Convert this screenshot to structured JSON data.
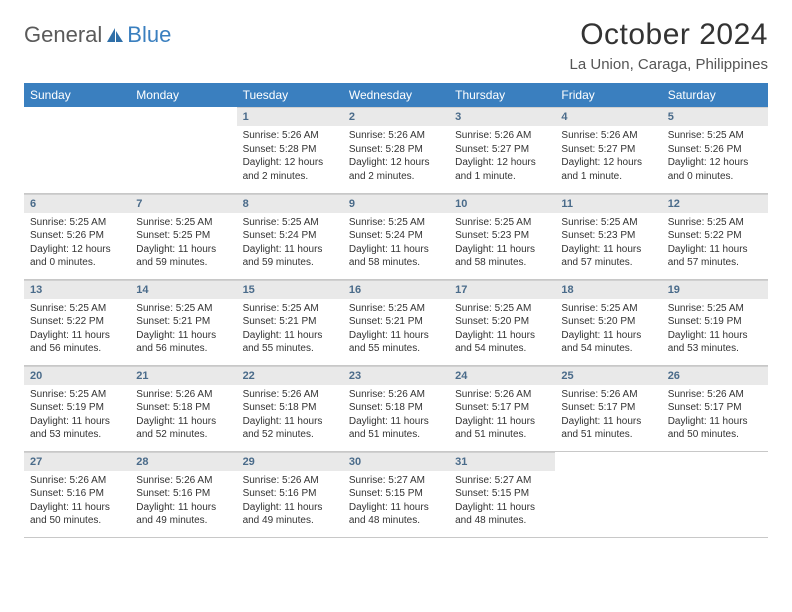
{
  "logo": {
    "text1": "General",
    "text2": "Blue"
  },
  "title": "October 2024",
  "location": "La Union, Caraga, Philippines",
  "header_bg": "#3a7fbf",
  "days_of_week": [
    "Sunday",
    "Monday",
    "Tuesday",
    "Wednesday",
    "Thursday",
    "Friday",
    "Saturday"
  ],
  "weeks": [
    [
      null,
      null,
      {
        "n": "1",
        "sr": "Sunrise: 5:26 AM",
        "ss": "Sunset: 5:28 PM",
        "dl": "Daylight: 12 hours and 2 minutes."
      },
      {
        "n": "2",
        "sr": "Sunrise: 5:26 AM",
        "ss": "Sunset: 5:28 PM",
        "dl": "Daylight: 12 hours and 2 minutes."
      },
      {
        "n": "3",
        "sr": "Sunrise: 5:26 AM",
        "ss": "Sunset: 5:27 PM",
        "dl": "Daylight: 12 hours and 1 minute."
      },
      {
        "n": "4",
        "sr": "Sunrise: 5:26 AM",
        "ss": "Sunset: 5:27 PM",
        "dl": "Daylight: 12 hours and 1 minute."
      },
      {
        "n": "5",
        "sr": "Sunrise: 5:25 AM",
        "ss": "Sunset: 5:26 PM",
        "dl": "Daylight: 12 hours and 0 minutes."
      }
    ],
    [
      {
        "n": "6",
        "sr": "Sunrise: 5:25 AM",
        "ss": "Sunset: 5:26 PM",
        "dl": "Daylight: 12 hours and 0 minutes."
      },
      {
        "n": "7",
        "sr": "Sunrise: 5:25 AM",
        "ss": "Sunset: 5:25 PM",
        "dl": "Daylight: 11 hours and 59 minutes."
      },
      {
        "n": "8",
        "sr": "Sunrise: 5:25 AM",
        "ss": "Sunset: 5:24 PM",
        "dl": "Daylight: 11 hours and 59 minutes."
      },
      {
        "n": "9",
        "sr": "Sunrise: 5:25 AM",
        "ss": "Sunset: 5:24 PM",
        "dl": "Daylight: 11 hours and 58 minutes."
      },
      {
        "n": "10",
        "sr": "Sunrise: 5:25 AM",
        "ss": "Sunset: 5:23 PM",
        "dl": "Daylight: 11 hours and 58 minutes."
      },
      {
        "n": "11",
        "sr": "Sunrise: 5:25 AM",
        "ss": "Sunset: 5:23 PM",
        "dl": "Daylight: 11 hours and 57 minutes."
      },
      {
        "n": "12",
        "sr": "Sunrise: 5:25 AM",
        "ss": "Sunset: 5:22 PM",
        "dl": "Daylight: 11 hours and 57 minutes."
      }
    ],
    [
      {
        "n": "13",
        "sr": "Sunrise: 5:25 AM",
        "ss": "Sunset: 5:22 PM",
        "dl": "Daylight: 11 hours and 56 minutes."
      },
      {
        "n": "14",
        "sr": "Sunrise: 5:25 AM",
        "ss": "Sunset: 5:21 PM",
        "dl": "Daylight: 11 hours and 56 minutes."
      },
      {
        "n": "15",
        "sr": "Sunrise: 5:25 AM",
        "ss": "Sunset: 5:21 PM",
        "dl": "Daylight: 11 hours and 55 minutes."
      },
      {
        "n": "16",
        "sr": "Sunrise: 5:25 AM",
        "ss": "Sunset: 5:21 PM",
        "dl": "Daylight: 11 hours and 55 minutes."
      },
      {
        "n": "17",
        "sr": "Sunrise: 5:25 AM",
        "ss": "Sunset: 5:20 PM",
        "dl": "Daylight: 11 hours and 54 minutes."
      },
      {
        "n": "18",
        "sr": "Sunrise: 5:25 AM",
        "ss": "Sunset: 5:20 PM",
        "dl": "Daylight: 11 hours and 54 minutes."
      },
      {
        "n": "19",
        "sr": "Sunrise: 5:25 AM",
        "ss": "Sunset: 5:19 PM",
        "dl": "Daylight: 11 hours and 53 minutes."
      }
    ],
    [
      {
        "n": "20",
        "sr": "Sunrise: 5:25 AM",
        "ss": "Sunset: 5:19 PM",
        "dl": "Daylight: 11 hours and 53 minutes."
      },
      {
        "n": "21",
        "sr": "Sunrise: 5:26 AM",
        "ss": "Sunset: 5:18 PM",
        "dl": "Daylight: 11 hours and 52 minutes."
      },
      {
        "n": "22",
        "sr": "Sunrise: 5:26 AM",
        "ss": "Sunset: 5:18 PM",
        "dl": "Daylight: 11 hours and 52 minutes."
      },
      {
        "n": "23",
        "sr": "Sunrise: 5:26 AM",
        "ss": "Sunset: 5:18 PM",
        "dl": "Daylight: 11 hours and 51 minutes."
      },
      {
        "n": "24",
        "sr": "Sunrise: 5:26 AM",
        "ss": "Sunset: 5:17 PM",
        "dl": "Daylight: 11 hours and 51 minutes."
      },
      {
        "n": "25",
        "sr": "Sunrise: 5:26 AM",
        "ss": "Sunset: 5:17 PM",
        "dl": "Daylight: 11 hours and 51 minutes."
      },
      {
        "n": "26",
        "sr": "Sunrise: 5:26 AM",
        "ss": "Sunset: 5:17 PM",
        "dl": "Daylight: 11 hours and 50 minutes."
      }
    ],
    [
      {
        "n": "27",
        "sr": "Sunrise: 5:26 AM",
        "ss": "Sunset: 5:16 PM",
        "dl": "Daylight: 11 hours and 50 minutes."
      },
      {
        "n": "28",
        "sr": "Sunrise: 5:26 AM",
        "ss": "Sunset: 5:16 PM",
        "dl": "Daylight: 11 hours and 49 minutes."
      },
      {
        "n": "29",
        "sr": "Sunrise: 5:26 AM",
        "ss": "Sunset: 5:16 PM",
        "dl": "Daylight: 11 hours and 49 minutes."
      },
      {
        "n": "30",
        "sr": "Sunrise: 5:27 AM",
        "ss": "Sunset: 5:15 PM",
        "dl": "Daylight: 11 hours and 48 minutes."
      },
      {
        "n": "31",
        "sr": "Sunrise: 5:27 AM",
        "ss": "Sunset: 5:15 PM",
        "dl": "Daylight: 11 hours and 48 minutes."
      },
      null,
      null
    ]
  ]
}
